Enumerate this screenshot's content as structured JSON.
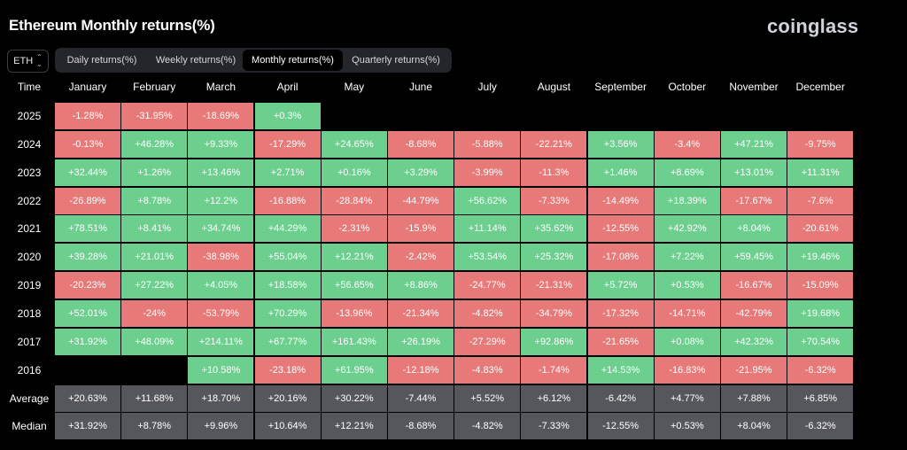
{
  "title": "Ethereum Monthly returns(%)",
  "logo": "coinglass",
  "coin_select": {
    "value": "ETH",
    "icon": "chevron-updown-icon"
  },
  "tabs": [
    {
      "label": "Daily returns(%)",
      "active": false
    },
    {
      "label": "Weekly returns(%)",
      "active": false
    },
    {
      "label": "Monthly returns(%)",
      "active": true
    },
    {
      "label": "Quarterly returns(%)",
      "active": false
    }
  ],
  "colors": {
    "positive": "#6ccf8e",
    "negative": "#e87979",
    "summary": "#56575c",
    "background": "#000000"
  },
  "chart_data": {
    "type": "heatmap",
    "corner_label": "Time",
    "columns": [
      "January",
      "February",
      "March",
      "April",
      "May",
      "June",
      "July",
      "August",
      "September",
      "October",
      "November",
      "December"
    ],
    "rows": [
      {
        "label": "2025",
        "values": [
          "-1.28%",
          "-31.95%",
          "-18.69%",
          "+0.3%",
          null,
          null,
          null,
          null,
          null,
          null,
          null,
          null
        ]
      },
      {
        "label": "2024",
        "values": [
          "-0.13%",
          "+46.28%",
          "+9.33%",
          "-17.29%",
          "+24.65%",
          "-8.68%",
          "-5.88%",
          "-22.21%",
          "+3.56%",
          "-3.4%",
          "+47.21%",
          "-9.75%"
        ]
      },
      {
        "label": "2023",
        "values": [
          "+32.44%",
          "+1.26%",
          "+13.46%",
          "+2.71%",
          "+0.16%",
          "+3.29%",
          "-3.99%",
          "-11.3%",
          "+1.46%",
          "+8.69%",
          "+13.01%",
          "+11.31%"
        ]
      },
      {
        "label": "2022",
        "values": [
          "-26.89%",
          "+8.78%",
          "+12.2%",
          "-16.88%",
          "-28.84%",
          "-44.79%",
          "+56.62%",
          "-7.33%",
          "-14.49%",
          "+18.39%",
          "-17.67%",
          "-7.6%"
        ]
      },
      {
        "label": "2021",
        "values": [
          "+78.51%",
          "+8.41%",
          "+34.74%",
          "+44.29%",
          "-2.31%",
          "-15.9%",
          "+11.14%",
          "+35.62%",
          "-12.55%",
          "+42.92%",
          "+8.04%",
          "-20.61%"
        ]
      },
      {
        "label": "2020",
        "values": [
          "+39.28%",
          "+21.01%",
          "-38.98%",
          "+55.04%",
          "+12.21%",
          "-2.42%",
          "+53.54%",
          "+25.32%",
          "-17.08%",
          "+7.22%",
          "+59.45%",
          "+19.46%"
        ]
      },
      {
        "label": "2019",
        "values": [
          "-20.23%",
          "+27.22%",
          "+4.05%",
          "+18.58%",
          "+56.65%",
          "+8.86%",
          "-24.77%",
          "-21.31%",
          "+5.72%",
          "+0.53%",
          "-16.67%",
          "-15.09%"
        ]
      },
      {
        "label": "2018",
        "values": [
          "+52.01%",
          "-24%",
          "-53.79%",
          "+70.29%",
          "-13.96%",
          "-21.34%",
          "-4.82%",
          "-34.79%",
          "-17.32%",
          "-14.71%",
          "-42.79%",
          "+19.68%"
        ]
      },
      {
        "label": "2017",
        "values": [
          "+31.92%",
          "+48.09%",
          "+214.11%",
          "+67.77%",
          "+161.43%",
          "+26.19%",
          "-27.29%",
          "+92.86%",
          "-21.65%",
          "+0.08%",
          "+42.32%",
          "+70.54%"
        ]
      },
      {
        "label": "2016",
        "values": [
          null,
          null,
          "+10.58%",
          "-23.18%",
          "+61.95%",
          "-12.18%",
          "-4.83%",
          "-1.74%",
          "+14.53%",
          "-16.83%",
          "-21.95%",
          "-6.32%"
        ]
      }
    ],
    "summary_rows": [
      {
        "label": "Average",
        "values": [
          "+20.63%",
          "+11.68%",
          "+18.70%",
          "+20.16%",
          "+30.22%",
          "-7.44%",
          "+5.52%",
          "+6.12%",
          "-6.42%",
          "+4.77%",
          "+7.88%",
          "+6.85%"
        ]
      },
      {
        "label": "Median",
        "values": [
          "+31.92%",
          "+8.78%",
          "+9.96%",
          "+10.64%",
          "+12.21%",
          "-8.68%",
          "-4.82%",
          "-7.33%",
          "-12.55%",
          "+0.53%",
          "+8.04%",
          "-6.32%"
        ]
      }
    ]
  }
}
